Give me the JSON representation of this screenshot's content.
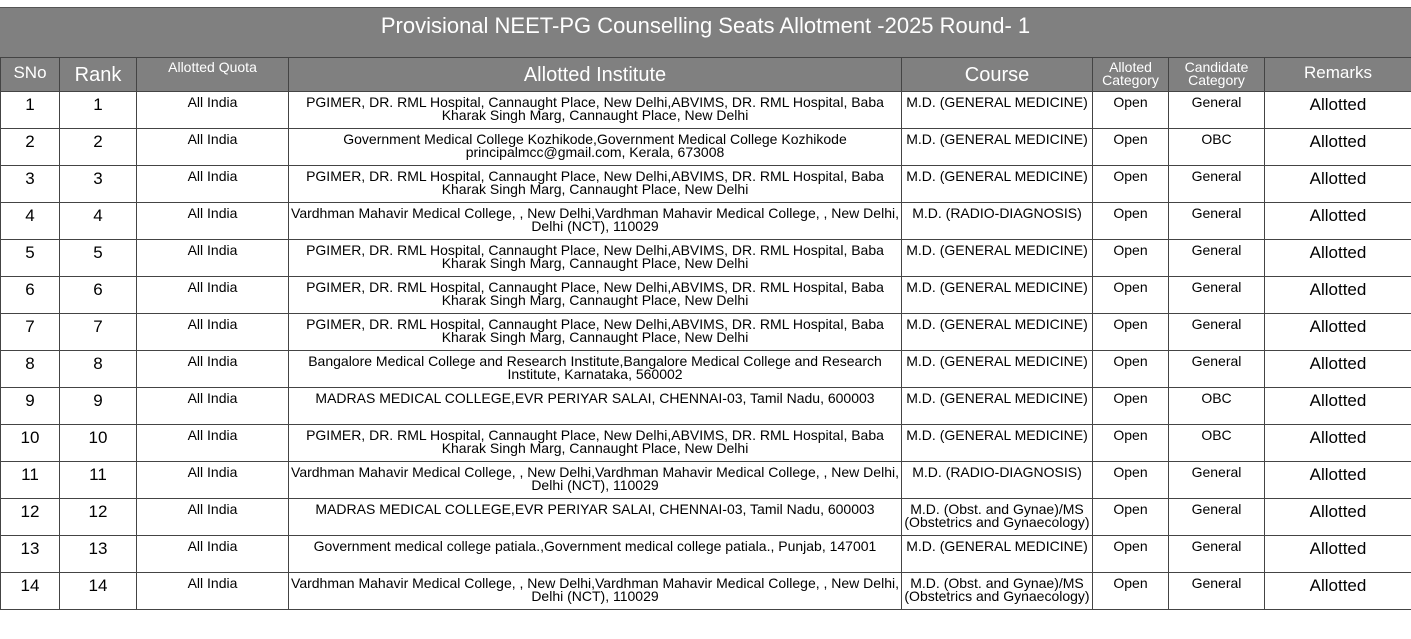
{
  "header": {
    "title": "Provisional NEET-PG  Counselling Seats Allotment -2025 Round- 1"
  },
  "table": {
    "columns": [
      "SNo",
      "Rank",
      "Allotted Quota",
      "Allotted Institute",
      "Course",
      "Alloted Category",
      "Candidate Category",
      "Remarks"
    ],
    "rows": [
      [
        "1",
        "1",
        "All India",
        "PGIMER, DR. RML Hospital, Cannaught Place, New Delhi,ABVIMS, DR. RML Hospital, Baba Kharak Singh Marg, Cannaught Place, New Delhi",
        "M.D. (GENERAL MEDICINE)",
        "Open",
        "General",
        "Allotted"
      ],
      [
        "2",
        "2",
        "All India",
        "Government Medical College Kozhikode,Government Medical College Kozhikode principalmcc@gmail.com, Kerala, 673008",
        "M.D. (GENERAL MEDICINE)",
        "Open",
        "OBC",
        "Allotted"
      ],
      [
        "3",
        "3",
        "All India",
        "PGIMER, DR. RML Hospital, Cannaught Place, New Delhi,ABVIMS, DR. RML Hospital, Baba Kharak Singh Marg, Cannaught Place, New Delhi",
        "M.D. (GENERAL MEDICINE)",
        "Open",
        "General",
        "Allotted"
      ],
      [
        "4",
        "4",
        "All India",
        "Vardhman Mahavir Medical College, , New Delhi,Vardhman Mahavir Medical College, , New Delhi, Delhi (NCT), 110029",
        "M.D. (RADIO-DIAGNOSIS)",
        "Open",
        "General",
        "Allotted"
      ],
      [
        "5",
        "5",
        "All India",
        "PGIMER, DR. RML Hospital, Cannaught Place, New Delhi,ABVIMS, DR. RML Hospital, Baba Kharak Singh Marg, Cannaught Place, New Delhi",
        "M.D. (GENERAL MEDICINE)",
        "Open",
        "General",
        "Allotted"
      ],
      [
        "6",
        "6",
        "All India",
        "PGIMER, DR. RML Hospital, Cannaught Place, New Delhi,ABVIMS, DR. RML Hospital, Baba Kharak Singh Marg, Cannaught Place, New Delhi",
        "M.D. (GENERAL MEDICINE)",
        "Open",
        "General",
        "Allotted"
      ],
      [
        "7",
        "7",
        "All India",
        "PGIMER, DR. RML Hospital, Cannaught Place, New Delhi,ABVIMS, DR. RML Hospital, Baba Kharak Singh Marg, Cannaught Place, New Delhi",
        "M.D. (GENERAL MEDICINE)",
        "Open",
        "General",
        "Allotted"
      ],
      [
        "8",
        "8",
        "All India",
        "Bangalore Medical College and Research Institute,Bangalore Medical College and Research Institute, Karnataka, 560002",
        "M.D. (GENERAL MEDICINE)",
        "Open",
        "General",
        "Allotted"
      ],
      [
        "9",
        "9",
        "All India",
        "MADRAS MEDICAL COLLEGE,EVR PERIYAR SALAI, CHENNAI-03, Tamil Nadu, 600003",
        "M.D. (GENERAL MEDICINE)",
        "Open",
        "OBC",
        "Allotted"
      ],
      [
        "10",
        "10",
        "All India",
        "PGIMER, DR. RML Hospital, Cannaught Place, New Delhi,ABVIMS, DR. RML Hospital, Baba Kharak Singh Marg, Cannaught Place, New Delhi",
        "M.D. (GENERAL MEDICINE)",
        "Open",
        "OBC",
        "Allotted"
      ],
      [
        "11",
        "11",
        "All India",
        "Vardhman Mahavir Medical College, , New Delhi,Vardhman Mahavir Medical College, , New Delhi, Delhi (NCT), 110029",
        "M.D. (RADIO-DIAGNOSIS)",
        "Open",
        "General",
        "Allotted"
      ],
      [
        "12",
        "12",
        "All India",
        "MADRAS MEDICAL COLLEGE,EVR PERIYAR SALAI, CHENNAI-03, Tamil Nadu, 600003",
        "M.D. (Obst. and Gynae)/MS (Obstetrics and Gynaecology)",
        "Open",
        "General",
        "Allotted"
      ],
      [
        "13",
        "13",
        "All India",
        "Government medical college patiala.,Government medical college patiala., Punjab, 147001",
        "M.D. (GENERAL MEDICINE)",
        "Open",
        "General",
        "Allotted"
      ],
      [
        "14",
        "14",
        "All India",
        "Vardhman Mahavir Medical College, , New Delhi,Vardhman Mahavir Medical College, , New Delhi, Delhi (NCT), 110029",
        "M.D. (Obst. and Gynae)/MS (Obstetrics and Gynaecology)",
        "Open",
        "General",
        "Allotted"
      ]
    ]
  }
}
